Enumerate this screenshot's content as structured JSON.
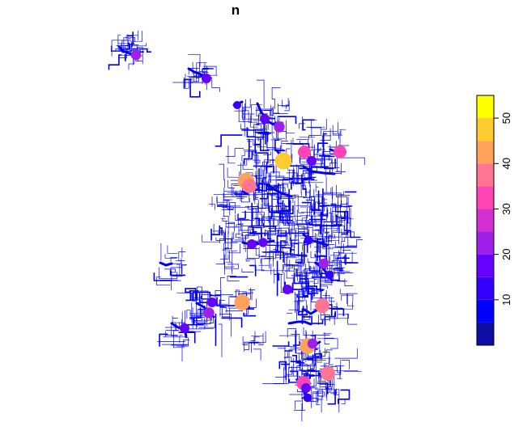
{
  "title": "n",
  "legend": {
    "ticks": [
      "10",
      "20",
      "30",
      "40",
      "50"
    ],
    "tick_values": [
      10,
      20,
      30,
      40,
      50
    ],
    "range": [
      0,
      55
    ],
    "bins": [
      {
        "from": 0,
        "to": 5,
        "color": "#0D0DA6"
      },
      {
        "from": 5,
        "to": 10,
        "color": "#0000FF"
      },
      {
        "from": 10,
        "to": 15,
        "color": "#3300FF"
      },
      {
        "from": 15,
        "to": 20,
        "color": "#6600FF"
      },
      {
        "from": 20,
        "to": 25,
        "color": "#9F1FEB"
      },
      {
        "from": 25,
        "to": 30,
        "color": "#D42FD0"
      },
      {
        "from": 30,
        "to": 35,
        "color": "#FF45B5"
      },
      {
        "from": 35,
        "to": 40,
        "color": "#FF7592"
      },
      {
        "from": 40,
        "to": 45,
        "color": "#FFA35C"
      },
      {
        "from": 45,
        "to": 50,
        "color": "#FFCC30"
      },
      {
        "from": 50,
        "to": 55,
        "color": "#FFFF00"
      }
    ]
  },
  "network_color": "#0000EE",
  "colors": {
    "background": "#FFFFFF",
    "frame": "#000000"
  }
}
